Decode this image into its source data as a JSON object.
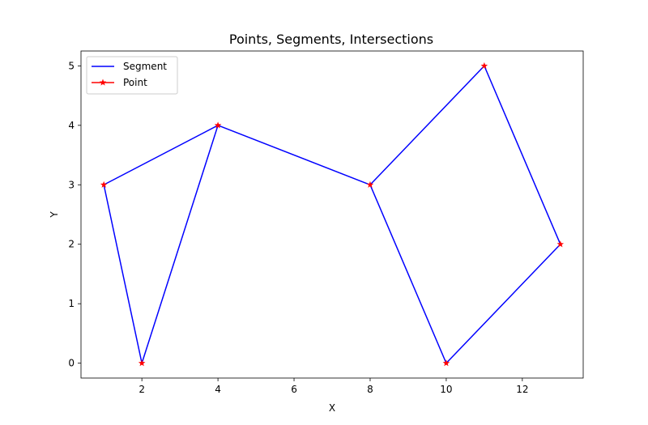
{
  "chart_data": {
    "type": "line",
    "title": "Points, Segments, Intersections",
    "xlabel": "X",
    "ylabel": "Y",
    "xlim": [
      0.4,
      13.6
    ],
    "ylim": [
      -0.25,
      5.25
    ],
    "xticks": [
      2,
      4,
      6,
      8,
      10,
      12
    ],
    "yticks": [
      0,
      1,
      2,
      3,
      4,
      5
    ],
    "grid": false,
    "legend_position": "top-left",
    "series": [
      {
        "name": "Segment",
        "color": "#0000ff",
        "marker": "none",
        "x": [
          1,
          2,
          4,
          8,
          10,
          13,
          11,
          8,
          4,
          1
        ],
        "y": [
          3,
          0,
          4,
          3,
          0,
          2,
          5,
          3,
          4,
          3
        ]
      },
      {
        "name": "Point",
        "color": "#ff0000",
        "marker": "star",
        "x": [
          1,
          2,
          4,
          8,
          10,
          13,
          11
        ],
        "y": [
          3,
          0,
          4,
          3,
          0,
          2,
          5
        ]
      }
    ]
  }
}
